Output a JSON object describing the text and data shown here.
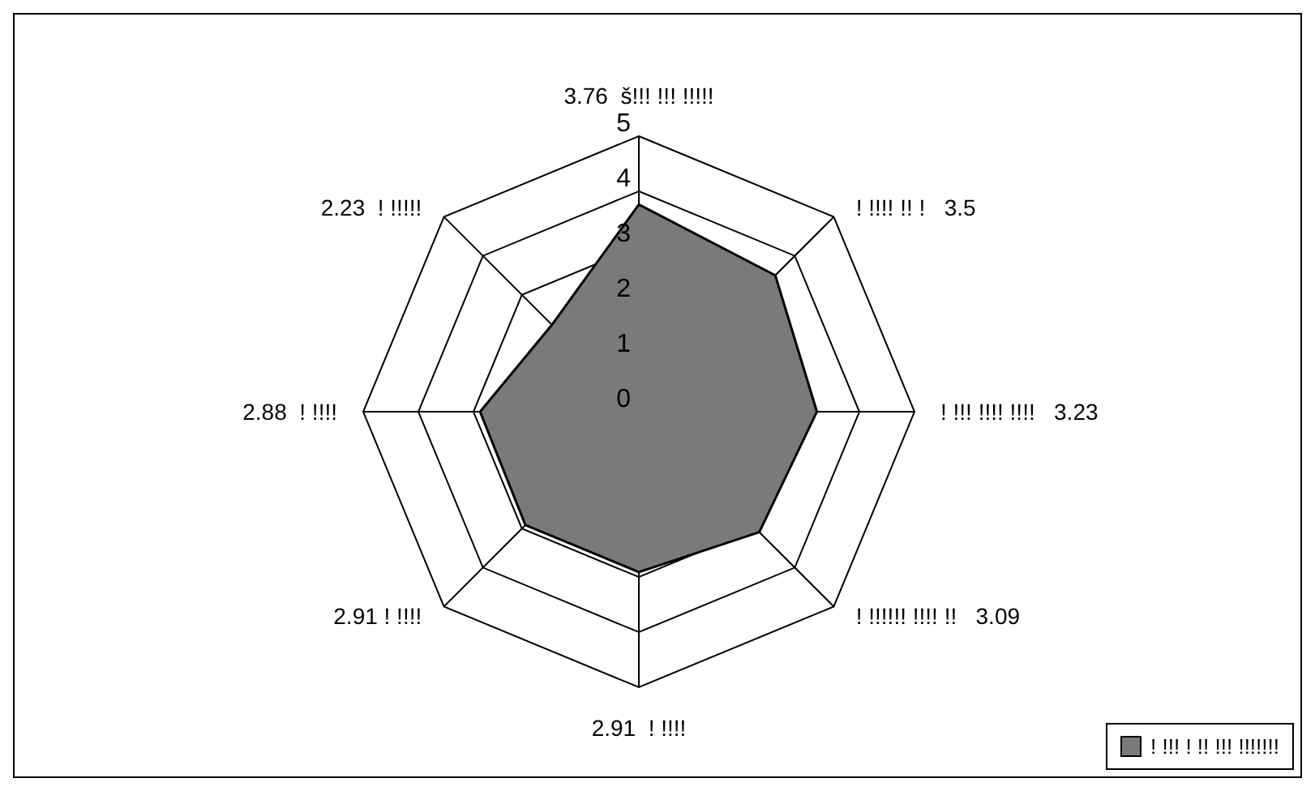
{
  "chart_data": {
    "type": "radar",
    "categories": [
      "3.76  š!!! !!! !!!!!",
      "! !!!! !! !   3.5",
      "! !!! !!!! !!!!   3.23",
      "! !!!!!! !!!! !!   3.09",
      "2.91  ! !!!!",
      "2.91 ! !!!!",
      "2.88  ! !!!!",
      "2.23  ! !!!!!"
    ],
    "series": [
      {
        "name": "! !!! ! !! !!! !!!!!!!",
        "color": "#7a7a7a",
        "values": [
          3.76,
          3.5,
          3.23,
          3.09,
          2.91,
          2.91,
          2.88,
          2.23
        ]
      }
    ],
    "ylim": [
      0,
      5
    ],
    "yticks": [
      0,
      1,
      2,
      3,
      4,
      5
    ],
    "grid": true,
    "legend": "bottom right"
  }
}
